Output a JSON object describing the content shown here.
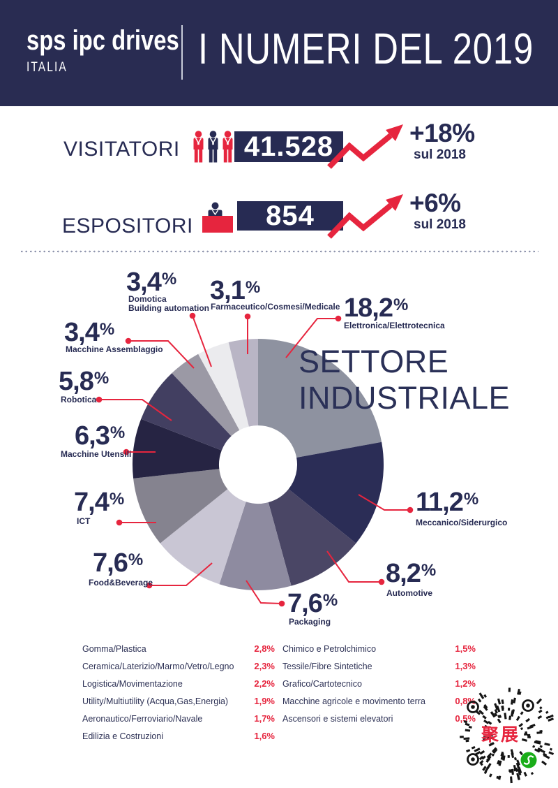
{
  "colors": {
    "navy": "#272b53",
    "banner_bg": "#292c52",
    "red": "#e6253e",
    "white": "#ffffff",
    "divider_dots": "#9096ae",
    "qr_ink": "#151515",
    "qr_green": "#1aad19"
  },
  "header": {
    "brand": "sps ipc drives",
    "brand_sub": "ITALIA",
    "title": "I NUMERI DEL 2019"
  },
  "stats": [
    {
      "label": "VISITATORI",
      "value": "41.528",
      "delta": "+18%",
      "delta_caption": "sul 2018",
      "icon": "visitors-group-icon"
    },
    {
      "label": "ESPOSITORI",
      "value": "854",
      "delta": "+6%",
      "delta_caption": "sul 2018",
      "icon": "exhibitor-booth-icon"
    }
  ],
  "chart_data": {
    "type": "pie",
    "style": "donut",
    "title_lines": [
      "SETTORE",
      "INDUSTRIALE"
    ],
    "unit": "%",
    "legend_position": "callouts-around-pie",
    "slices": [
      {
        "label": "Elettronica/Elettrotecnica",
        "value": 18.2,
        "display": "18,2",
        "color": "#8e92a0"
      },
      {
        "label": "Meccanico/Siderurgico",
        "value": 11.2,
        "display": "11,2",
        "color": "#2b2d56"
      },
      {
        "label": "Automotive",
        "value": 8.2,
        "display": "8,2",
        "color": "#4a4665"
      },
      {
        "label": "Packaging",
        "value": 7.6,
        "display": "7,6",
        "color": "#8e8ba0"
      },
      {
        "label": "Food&Beverage",
        "value": 7.6,
        "display": "7,6",
        "color": "#c9c6d4"
      },
      {
        "label": "ICT",
        "value": 7.4,
        "display": "7,4",
        "color": "#85838f"
      },
      {
        "label": "Macchine Utensili",
        "value": 6.3,
        "display": "6,3",
        "color": "#262443"
      },
      {
        "label": "Robotica",
        "value": 5.8,
        "display": "5,8",
        "color": "#423f61"
      },
      {
        "label": "Macchine Assemblaggio",
        "value": 3.4,
        "display": "3,4",
        "color": "#9b99a5"
      },
      {
        "label": "Domotica\nBuilding automation",
        "value": 3.4,
        "display": "3,4",
        "color": "#ebebee"
      },
      {
        "label": "Farmaceutico/Cosmesi/Medicale",
        "value": 3.1,
        "display": "3,1",
        "color": "#b9b5c5"
      }
    ],
    "other_sectors_table": {
      "left": [
        {
          "label": "Gomma/Plastica",
          "value": "2,8%"
        },
        {
          "label": "Ceramica/Laterizio/Marmo/Vetro/Legno",
          "value": "2,3%"
        },
        {
          "label": "Logistica/Movimentazione",
          "value": "2,2%"
        },
        {
          "label": "Utility/Multiutility (Acqua,Gas,Energia)",
          "value": "1,9%"
        },
        {
          "label": "Aeronautico/Ferroviario/Navale",
          "value": "1,7%"
        },
        {
          "label": "Edilizia e Costruzioni",
          "value": "1,6%"
        }
      ],
      "right": [
        {
          "label": "Chimico e Petrolchimico",
          "value": "1,5%"
        },
        {
          "label": "Tessile/Fibre Sintetiche",
          "value": "1,3%"
        },
        {
          "label": "Grafico/Cartotecnico",
          "value": "1,2%"
        },
        {
          "label": "Macchine agricole e movimento terra",
          "value": "0,8%"
        },
        {
          "label": "Ascensori e sistemi elevatori",
          "value": "0,5%"
        }
      ]
    }
  },
  "qr": {
    "center_text": "聚展"
  }
}
